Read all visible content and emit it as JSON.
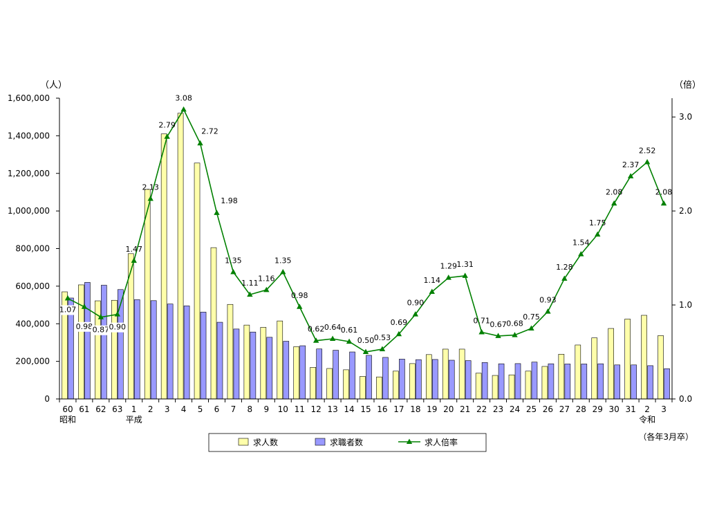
{
  "chart_data": {
    "type": "bar",
    "categories": [
      "60",
      "61",
      "62",
      "63",
      "1",
      "2",
      "3",
      "4",
      "5",
      "6",
      "7",
      "8",
      "9",
      "10",
      "11",
      "12",
      "13",
      "14",
      "15",
      "16",
      "17",
      "18",
      "19",
      "20",
      "21",
      "22",
      "23",
      "24",
      "25",
      "26",
      "27",
      "28",
      "29",
      "30",
      "31",
      "2",
      "3"
    ],
    "era_labels": [
      {
        "index": 0,
        "text": "昭和"
      },
      {
        "index": 4,
        "text": "平成"
      },
      {
        "index": 35,
        "text": "令和"
      }
    ],
    "series": [
      {
        "name": "求人数",
        "type": "bar",
        "axis": "left",
        "color": "#FFFFAA",
        "values": [
          570000,
          607000,
          522000,
          525000,
          773000,
          1115000,
          1410000,
          1520000,
          1255000,
          805000,
          503000,
          393000,
          381000,
          415000,
          278000,
          168000,
          162000,
          155000,
          120000,
          117000,
          148000,
          188000,
          236000,
          265000,
          265000,
          137000,
          125000,
          128000,
          148000,
          173000,
          238000,
          287000,
          325000,
          375000,
          425000,
          445000,
          337000
        ]
      },
      {
        "name": "求職者数",
        "type": "bar",
        "axis": "left",
        "color": "#9999FF",
        "values": [
          537000,
          620000,
          605000,
          582000,
          528000,
          523000,
          505000,
          495000,
          462000,
          408000,
          372000,
          356000,
          328000,
          307000,
          283000,
          266000,
          259000,
          250000,
          232000,
          221000,
          212000,
          209000,
          210000,
          206000,
          204000,
          194000,
          187000,
          188000,
          196000,
          187000,
          186000,
          186000,
          187000,
          181000,
          181000,
          177000,
          161000
        ]
      },
      {
        "name": "求人倍率",
        "type": "line",
        "axis": "right",
        "color": "#008000",
        "values": [
          1.07,
          0.98,
          0.87,
          0.9,
          1.47,
          2.13,
          2.79,
          3.08,
          2.72,
          1.98,
          1.35,
          1.11,
          1.16,
          1.35,
          0.98,
          0.62,
          0.64,
          0.61,
          0.5,
          0.53,
          0.69,
          0.9,
          1.14,
          1.29,
          1.31,
          0.71,
          0.67,
          0.68,
          0.75,
          0.93,
          1.28,
          1.54,
          1.75,
          2.08,
          2.37,
          2.52,
          2.08
        ],
        "labels": [
          "1.07",
          "0.98",
          "0.87",
          "0.90",
          "1.47",
          "2.13",
          "2.79",
          "3.08",
          "2.72",
          "1.98",
          "1.35",
          "1.11",
          "1.16",
          "1.35",
          "0.98",
          "0.62",
          "0.64",
          "0.61",
          "0.50",
          "0.53",
          "0.69",
          "0.90",
          "1.14",
          "1.29",
          "1.31",
          "0.71",
          "0.67",
          "0.68",
          "0.75",
          "0.93",
          "1.28",
          "1.54",
          "1.75",
          "2.08",
          "2.37",
          "2.52",
          "2.08"
        ]
      }
    ],
    "y_left": {
      "unit": "（人）",
      "min": 0,
      "max": 1600000,
      "ticks": [
        0,
        200000,
        400000,
        600000,
        800000,
        1000000,
        1200000,
        1400000,
        1600000
      ],
      "tick_labels": [
        "0",
        "200,000",
        "400,000",
        "600,000",
        "800,000",
        "1,000,000",
        "1,200,000",
        "1,400,000",
        "1,600,000"
      ]
    },
    "y_right": {
      "unit": "（倍）",
      "min": 0,
      "max": 3.2,
      "ticks": [
        0,
        1,
        2,
        3
      ],
      "tick_labels": [
        "0.0",
        "1.0",
        "2.0",
        "3.0"
      ]
    },
    "note": "（各年3月卒）",
    "legend": {
      "placement": "bottom",
      "items": [
        "求人数",
        "求職者数",
        "求人倍率"
      ]
    }
  }
}
